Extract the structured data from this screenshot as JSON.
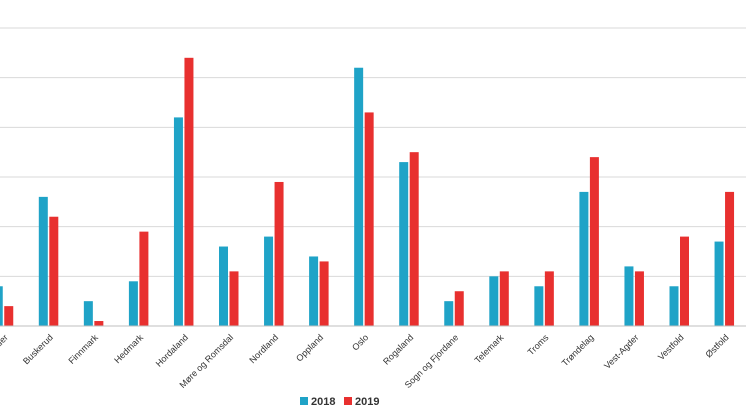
{
  "chart_data": {
    "type": "bar",
    "title": "",
    "xlabel": "",
    "ylabel": "",
    "categories": [
      "Agder",
      "Buskerud",
      "Finnmark",
      "Hedmark",
      "Hordaland",
      "Møre og Romsdal",
      "Nordland",
      "Oppland",
      "Oslo",
      "Rogaland",
      "Sogn og Fjordane",
      "Telemark",
      "Troms",
      "Trøndelag",
      "Vest-Agder",
      "Vestfold",
      "Østfold"
    ],
    "displayed_categories": [
      "gder",
      "Buskerud",
      "Finnmark",
      "Hedmark",
      "Hordaland",
      "Møre og Romsdal",
      "Nordland",
      "Oppland",
      "Oslo",
      "Rogaland",
      "Sogn og Fjordane",
      "Telemark",
      "Troms",
      "Trøndelag",
      "Vest-Agder",
      "Vestfold",
      "Østfold"
    ],
    "series": [
      {
        "name": "2018",
        "color": "#1FA3C7",
        "values": [
          8,
          26,
          5,
          9,
          42,
          16,
          18,
          14,
          52,
          33,
          5,
          10,
          8,
          27,
          12,
          8,
          17
        ]
      },
      {
        "name": "2019",
        "color": "#E8302F",
        "values": [
          4,
          22,
          1,
          19,
          54,
          11,
          29,
          13,
          43,
          35,
          7,
          11,
          11,
          34,
          11,
          18,
          27
        ]
      }
    ],
    "ylim": [
      0,
      60
    ],
    "grid": true,
    "legend_position": "bottom-center",
    "y_tick_labels_visible": false
  }
}
